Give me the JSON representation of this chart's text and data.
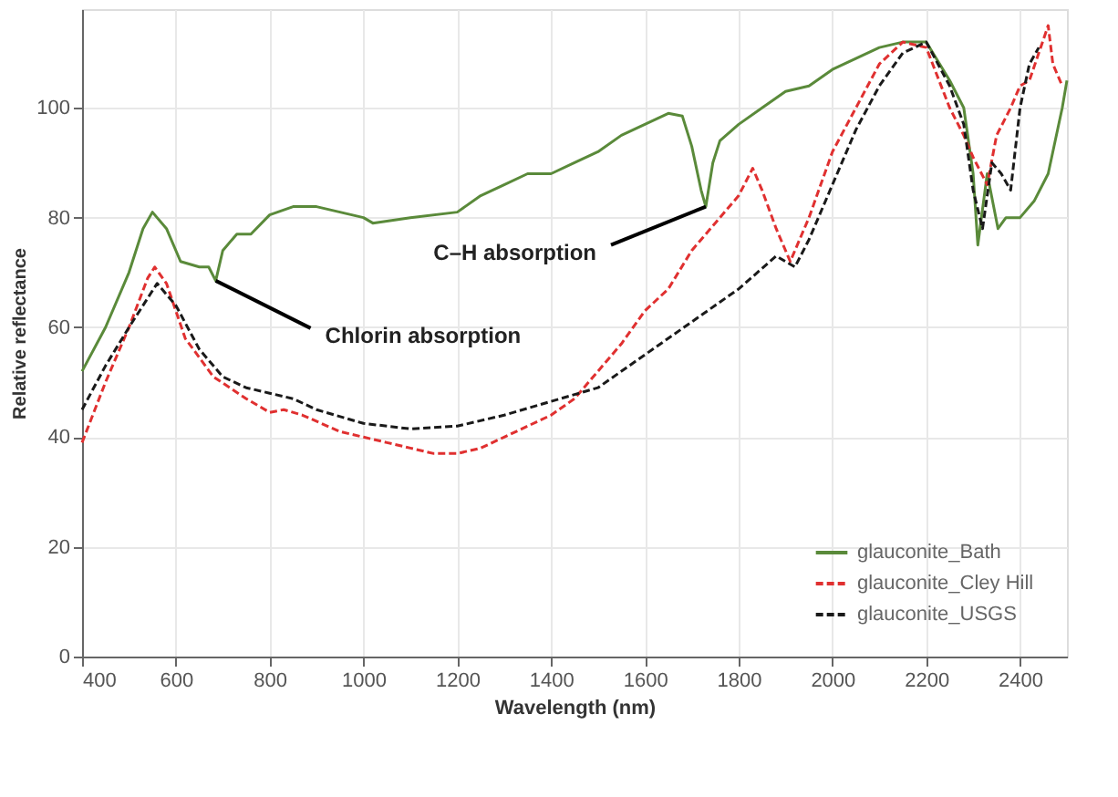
{
  "chart_data": {
    "type": "line",
    "xlabel": "Wavelength (nm)",
    "ylabel": "Relative reflectance",
    "xlim": [
      400,
      2500
    ],
    "xticks": [
      400,
      600,
      800,
      1000,
      1200,
      1400,
      1600,
      1800,
      2000,
      2200,
      2400
    ],
    "ylim": [
      0,
      118
    ],
    "yticks": [
      0,
      20,
      40,
      60,
      80,
      100
    ],
    "grid": true,
    "legend": "bottom right",
    "marker": "none",
    "annotations": [
      {
        "text": "Chlorin absorption",
        "x": 685,
        "y": 68.5
      },
      {
        "text": "C–H absorption",
        "x": 1730,
        "y": 82
      }
    ],
    "series": [
      {
        "name": "glauconite_Bath",
        "color": "#5a8a3a",
        "line_style": "solid",
        "x": [
          400,
          450,
          500,
          530,
          550,
          580,
          610,
          650,
          670,
          685,
          700,
          730,
          760,
          800,
          850,
          900,
          950,
          1000,
          1020,
          1100,
          1200,
          1250,
          1300,
          1350,
          1400,
          1450,
          1500,
          1550,
          1600,
          1650,
          1680,
          1700,
          1720,
          1730,
          1745,
          1760,
          1800,
          1850,
          1900,
          1950,
          2000,
          2050,
          2100,
          2150,
          2200,
          2250,
          2280,
          2300,
          2310,
          2330,
          2353,
          2370,
          2400,
          2430,
          2460,
          2490,
          2500
        ],
        "values": [
          52,
          60,
          70,
          78,
          81,
          78,
          72,
          71,
          71,
          68.5,
          74,
          77,
          77,
          80.5,
          82,
          82,
          81,
          80,
          79,
          80,
          81,
          84,
          86,
          88,
          88,
          90,
          92,
          95,
          97,
          99,
          98.5,
          93,
          85,
          82,
          90,
          94,
          97,
          100,
          103,
          104,
          107,
          109,
          111,
          112,
          112,
          105,
          100,
          88,
          75,
          88,
          78,
          80,
          80,
          83,
          88,
          100,
          105
        ]
      },
      {
        "name": "glauconite_Cley Hill",
        "color": "#e03030",
        "line_style": "dashed",
        "x": [
          400,
          450,
          500,
          540,
          555,
          580,
          620,
          680,
          750,
          800,
          830,
          870,
          950,
          1000,
          1050,
          1100,
          1150,
          1200,
          1250,
          1300,
          1350,
          1400,
          1450,
          1500,
          1550,
          1600,
          1650,
          1700,
          1750,
          1800,
          1830,
          1850,
          1880,
          1910,
          1950,
          2000,
          2050,
          2100,
          2150,
          2200,
          2250,
          2280,
          2300,
          2330,
          2350,
          2380,
          2400,
          2420,
          2440,
          2460,
          2470,
          2490
        ],
        "values": [
          39,
          50,
          60,
          69,
          71,
          68,
          58,
          51,
          47,
          44.5,
          45,
          44,
          41,
          40,
          39,
          38,
          37,
          37,
          38,
          40,
          42,
          44,
          47,
          52,
          57,
          63,
          67,
          74,
          79,
          84,
          89,
          85,
          78,
          72,
          80,
          92,
          100,
          108,
          112,
          111,
          100,
          95,
          91,
          86,
          95,
          100,
          104,
          105,
          110,
          115,
          108,
          104
        ]
      },
      {
        "name": "glauconite_USGS",
        "color": "#1a1a1a",
        "line_style": "dashed",
        "x": [
          400,
          450,
          500,
          560,
          600,
          650,
          700,
          750,
          800,
          850,
          900,
          1000,
          1100,
          1200,
          1300,
          1400,
          1500,
          1600,
          1700,
          1800,
          1880,
          1900,
          1920,
          1950,
          2000,
          2050,
          2100,
          2150,
          2200,
          2250,
          2280,
          2300,
          2320,
          2340,
          2360,
          2380,
          2400,
          2420,
          2440
        ],
        "values": [
          45,
          53,
          60,
          68,
          64,
          56,
          51,
          49,
          48,
          47,
          45,
          42.5,
          41.5,
          42,
          44,
          46.5,
          49,
          55,
          61,
          67,
          73,
          72,
          71,
          76,
          86,
          96,
          104,
          110,
          112,
          104,
          97,
          85,
          78,
          90,
          88,
          85,
          100,
          108,
          111
        ]
      }
    ]
  }
}
